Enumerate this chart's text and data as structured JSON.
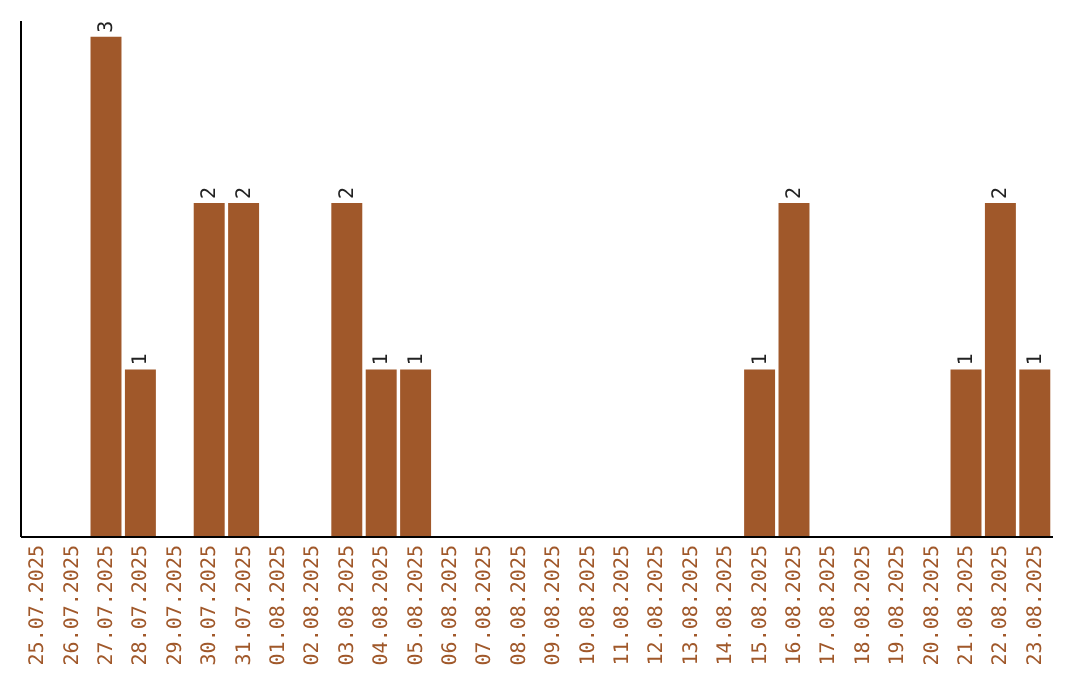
{
  "chart_data": {
    "type": "bar",
    "categories": [
      "25.07.2025",
      "26.07.2025",
      "27.07.2025",
      "28.07.2025",
      "29.07.2025",
      "30.07.2025",
      "31.07.2025",
      "01.08.2025",
      "02.08.2025",
      "03.08.2025",
      "04.08.2025",
      "05.08.2025",
      "06.08.2025",
      "07.08.2025",
      "08.08.2025",
      "09.08.2025",
      "10.08.2025",
      "11.08.2025",
      "12.08.2025",
      "13.08.2025",
      "14.08.2025",
      "15.08.2025",
      "16.08.2025",
      "17.08.2025",
      "18.08.2025",
      "19.08.2025",
      "20.08.2025",
      "21.08.2025",
      "22.08.2025",
      "23.08.2025"
    ],
    "values": [
      0,
      0,
      3,
      1,
      0,
      2,
      2,
      0,
      0,
      2,
      1,
      1,
      0,
      0,
      0,
      0,
      0,
      0,
      0,
      0,
      0,
      1,
      2,
      0,
      0,
      0,
      0,
      1,
      2,
      1
    ],
    "value_labels": [
      null,
      null,
      "3",
      "1",
      null,
      "2",
      "2",
      null,
      null,
      "2",
      "1",
      "1",
      null,
      null,
      null,
      null,
      null,
      null,
      null,
      null,
      null,
      "1",
      "2",
      null,
      null,
      null,
      null,
      "1",
      "2",
      "1"
    ],
    "color": "#a0582a",
    "ylim": [
      0,
      3.1
    ],
    "tick_labels": "x"
  }
}
